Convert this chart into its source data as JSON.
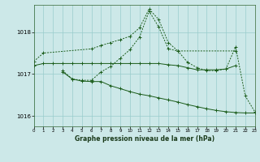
{
  "background_color": "#cce8e8",
  "plot_background": "#cce8e8",
  "grid_color": "#99cccc",
  "line_color": "#1a5c1a",
  "xlabel": "Graphe pression niveau de la mer (hPa)",
  "ylim": [
    1015.75,
    1018.65
  ],
  "yticks": [
    1016,
    1017,
    1018
  ],
  "xlim": [
    0,
    23
  ],
  "hours": [
    0,
    1,
    2,
    3,
    4,
    5,
    6,
    7,
    8,
    9,
    10,
    11,
    12,
    13,
    14,
    15,
    16,
    17,
    18,
    19,
    20,
    21,
    22,
    23
  ],
  "series": [
    {
      "name": "line1_dotted_upper",
      "style": "dotted",
      "data": [
        1017.3,
        1017.5,
        null,
        null,
        null,
        null,
        1017.6,
        1017.68,
        1017.75,
        1017.82,
        1017.9,
        1018.1,
        1018.55,
        1018.3,
        1017.75,
        1017.55,
        null,
        null,
        null,
        null,
        null,
        1017.55,
        null,
        null
      ]
    },
    {
      "name": "line2_solid_flat",
      "style": "solid",
      "data": [
        1017.2,
        1017.25,
        1017.25,
        1017.25,
        1017.25,
        1017.25,
        1017.25,
        1017.25,
        1017.25,
        1017.25,
        1017.25,
        1017.25,
        1017.25,
        1017.25,
        1017.22,
        1017.2,
        1017.15,
        1017.1,
        1017.1,
        1017.1,
        1017.12,
        1017.2,
        null,
        null
      ]
    },
    {
      "name": "line3_solid_declining",
      "style": "solid",
      "data": [
        null,
        null,
        null,
        1017.05,
        1016.88,
        1016.83,
        1016.82,
        1016.82,
        1016.72,
        1016.65,
        1016.58,
        1016.52,
        1016.48,
        1016.43,
        1016.38,
        1016.33,
        1016.27,
        1016.22,
        1016.17,
        1016.13,
        1016.1,
        1016.08,
        1016.07,
        1016.07
      ]
    },
    {
      "name": "line4_dotted_peak",
      "style": "dotted",
      "data": [
        null,
        null,
        null,
        1017.08,
        1016.88,
        1016.85,
        1016.85,
        1017.05,
        1017.18,
        1017.38,
        1017.58,
        1017.88,
        1018.5,
        1018.12,
        1017.6,
        1017.55,
        1017.28,
        1017.15,
        1017.08,
        1017.08,
        1017.12,
        1017.65,
        1016.48,
        1016.1
      ]
    }
  ]
}
